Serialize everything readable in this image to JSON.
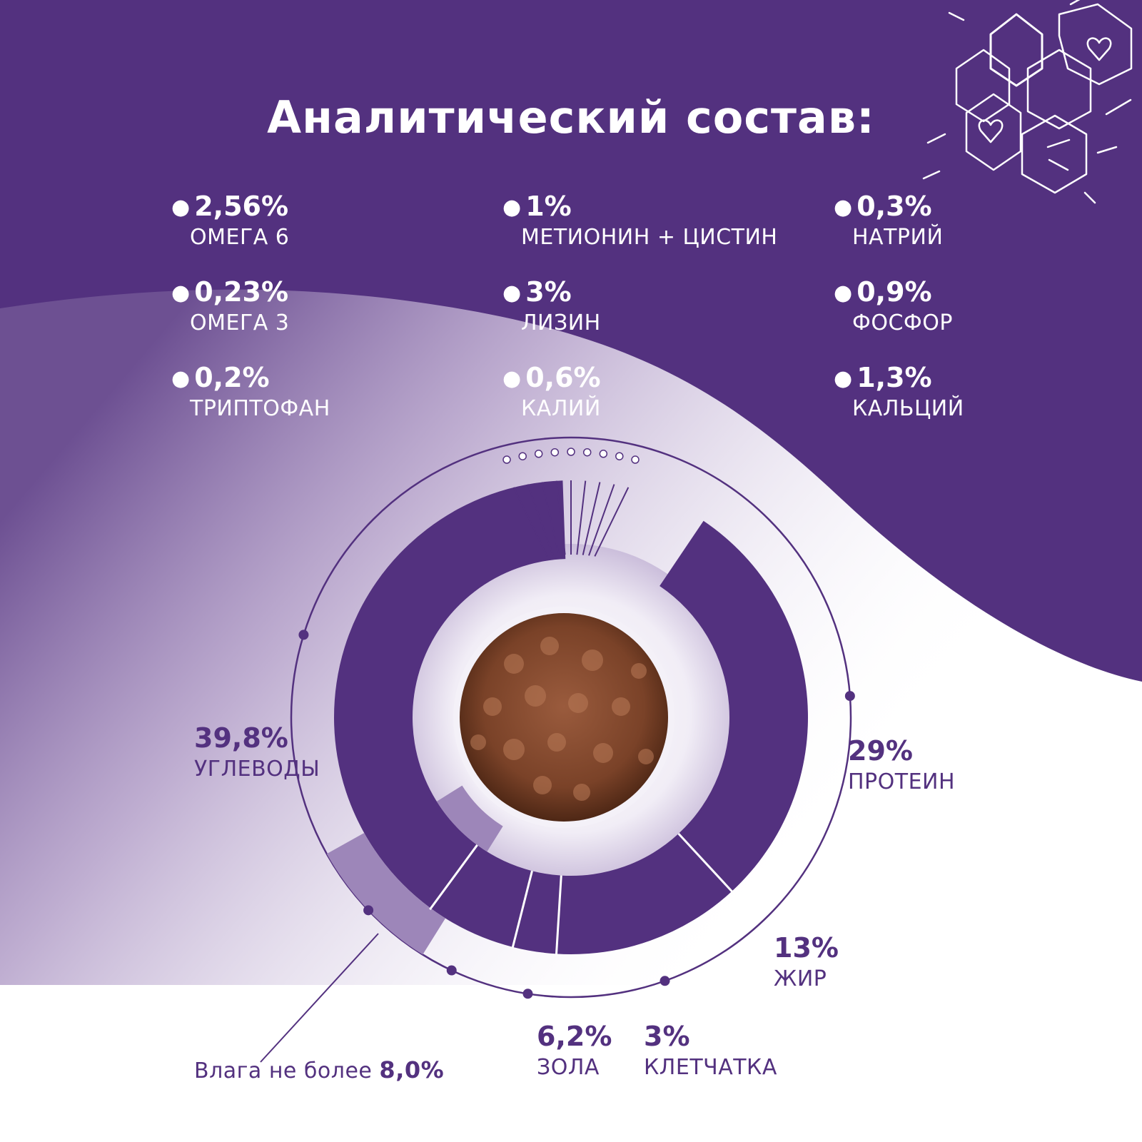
{
  "header": {
    "title": "Аналитический состав:"
  },
  "nutrients": [
    {
      "value": "2,56%",
      "name": "ОМЕГА 6"
    },
    {
      "value": "0,23%",
      "name": "ОМЕГА 3"
    },
    {
      "value": "0,2%",
      "name": "ТРИПТОФАН"
    },
    {
      "value": "1%",
      "name": "МЕТИОНИН + ЦИСТИН"
    },
    {
      "value": "3%",
      "name": "ЛИЗИН"
    },
    {
      "value": "0,6%",
      "name": "КАЛИЙ"
    },
    {
      "value": "0,3%",
      "name": "НАТРИЙ"
    },
    {
      "value": "0,9%",
      "name": "ФОСФОР"
    },
    {
      "value": "1,3%",
      "name": "КАЛЬЦИЙ"
    }
  ],
  "chart_data": {
    "type": "pie",
    "slices": [
      {
        "label": "ПРОТЕИН",
        "value_text": "29%",
        "value": 29
      },
      {
        "label": "ЖИР",
        "value_text": "13%",
        "value": 13
      },
      {
        "label": "КЛЕТЧАТКА",
        "value_text": "3%",
        "value": 3
      },
      {
        "label": "ЗОЛА",
        "value_text": "6,2%",
        "value": 6.2
      },
      {
        "label": "УГЛЕВОДЫ",
        "value_text": "39,8%",
        "value": 39.8
      }
    ],
    "moisture": {
      "text": "Влага не более",
      "value_text": "8,0%",
      "value": 8.0
    },
    "colors": {
      "main": "#53317f",
      "moisture": "#9d86b9",
      "background": "#ffffff"
    }
  }
}
